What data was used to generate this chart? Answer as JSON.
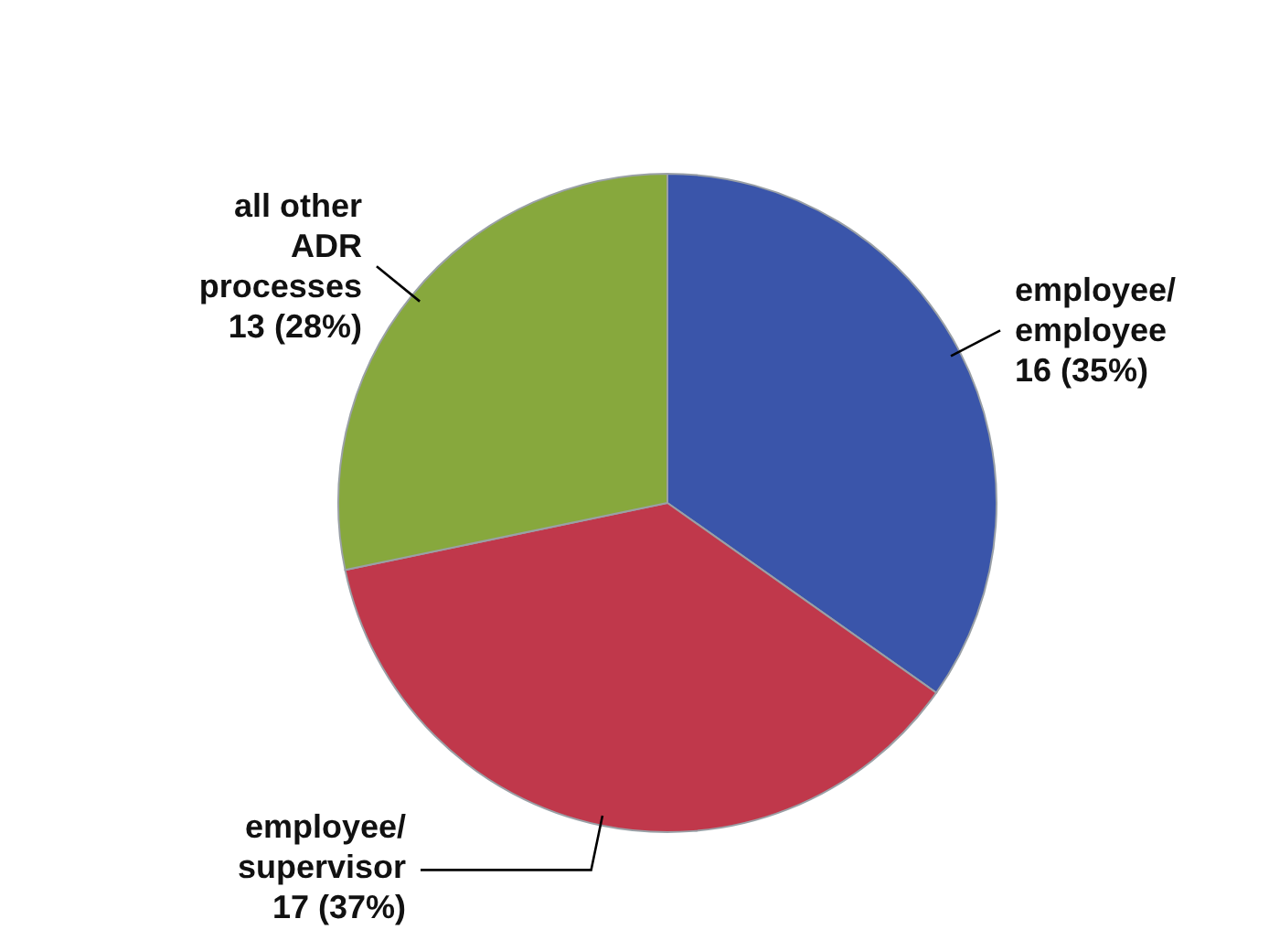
{
  "chart_data": {
    "type": "pie",
    "categories": [
      "employee/employee",
      "employee/supervisor",
      "all other ADR processes"
    ],
    "values": [
      16,
      17,
      13
    ],
    "value_labels": [
      "16 (35%)",
      "17 (37%)",
      "13 (28%)"
    ],
    "colors": [
      "#3a55aa",
      "#c0384b",
      "#87a83d"
    ]
  }
}
